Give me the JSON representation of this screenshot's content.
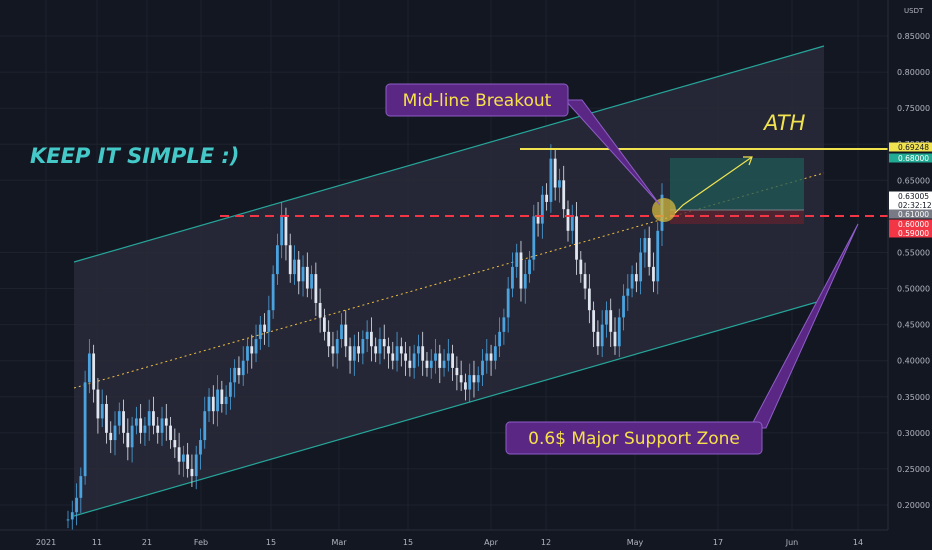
{
  "chart_data": {
    "type": "candlestick",
    "currency_label": "USDT",
    "y_ticks": [
      "0.85000",
      "0.80000",
      "0.75000",
      "0.70000",
      "0.65000",
      "0.55000",
      "0.50000",
      "0.45000",
      "0.40000",
      "0.35000",
      "0.30000",
      "0.25000",
      "0.20000"
    ],
    "x_ticks": [
      "2021",
      "11",
      "21",
      "Feb",
      "15",
      "Mar",
      "15",
      "Apr",
      "12",
      "May",
      "17",
      "Jun",
      "14"
    ],
    "price_tags": [
      {
        "value": "0.69248",
        "bg": "#f0e34f",
        "fg": "#131722"
      },
      {
        "value": "0.68000",
        "bg": "#22ab94",
        "fg": "#ffffff"
      },
      {
        "value": "0.63005",
        "bg": "#ffffff",
        "fg": "#131722"
      },
      {
        "value": "02:32:12",
        "bg": "#ffffff",
        "fg": "#131722"
      },
      {
        "value": "0.61000",
        "bg": "#787b86",
        "fg": "#ffffff"
      },
      {
        "value": "0.60000",
        "bg": "#f23645",
        "fg": "#ffffff"
      },
      {
        "value": "0.59000",
        "bg": "#f23645",
        "fg": "#ffffff"
      }
    ],
    "annotations": {
      "keep_simple": "KEEP IT SIMPLE :)",
      "ath": "ATH",
      "midline_breakout": "Mid-line Breakout",
      "support_zone": "0.6$ Major Support Zone"
    },
    "levels": {
      "ath": 0.69248,
      "support": 0.6,
      "target": 0.68,
      "stop": 0.59,
      "entry": 0.61
    },
    "colors": {
      "channel": "#26a69a",
      "support_line": "#f23645",
      "ath_line": "#f0e34f",
      "candles": "#2e86de",
      "callout_bg": "#5a2784",
      "callout_border": "#8e5ec8"
    },
    "series": [
      {
        "values": [
          0.18,
          0.19,
          0.21,
          0.24,
          0.37,
          0.41,
          0.36,
          0.32,
          0.34,
          0.3,
          0.29,
          0.31,
          0.33,
          0.3,
          0.28,
          0.31,
          0.32,
          0.3,
          0.31,
          0.33,
          0.31,
          0.3,
          0.32,
          0.31,
          0.29,
          0.28,
          0.26,
          0.27,
          0.25,
          0.24,
          0.27,
          0.29,
          0.33,
          0.35,
          0.33,
          0.36,
          0.34,
          0.35,
          0.37,
          0.39,
          0.38,
          0.4,
          0.42,
          0.41,
          0.43,
          0.45,
          0.44,
          0.47,
          0.52,
          0.56,
          0.6,
          0.56,
          0.52,
          0.54,
          0.51,
          0.53,
          0.5,
          0.52,
          0.48,
          0.46,
          0.44,
          0.42,
          0.41,
          0.43,
          0.45,
          0.42,
          0.4,
          0.42,
          0.41,
          0.43,
          0.44,
          0.42,
          0.41,
          0.43,
          0.42,
          0.41,
          0.4,
          0.42,
          0.41,
          0.4,
          0.39,
          0.41,
          0.42,
          0.4,
          0.39,
          0.4,
          0.41,
          0.39,
          0.4,
          0.41,
          0.39,
          0.38,
          0.37,
          0.36,
          0.38,
          0.37,
          0.38,
          0.4,
          0.41,
          0.4,
          0.42,
          0.44,
          0.46,
          0.5,
          0.53,
          0.55,
          0.5,
          0.52,
          0.54,
          0.6,
          0.59,
          0.63,
          0.62,
          0.68,
          0.64,
          0.65,
          0.61,
          0.58,
          0.6,
          0.54,
          0.52,
          0.5,
          0.47,
          0.44,
          0.42,
          0.45,
          0.47,
          0.44,
          0.42,
          0.46,
          0.49,
          0.5,
          0.52,
          0.51,
          0.55,
          0.57,
          0.53,
          0.51,
          0.58,
          0.63
        ]
      }
    ]
  }
}
